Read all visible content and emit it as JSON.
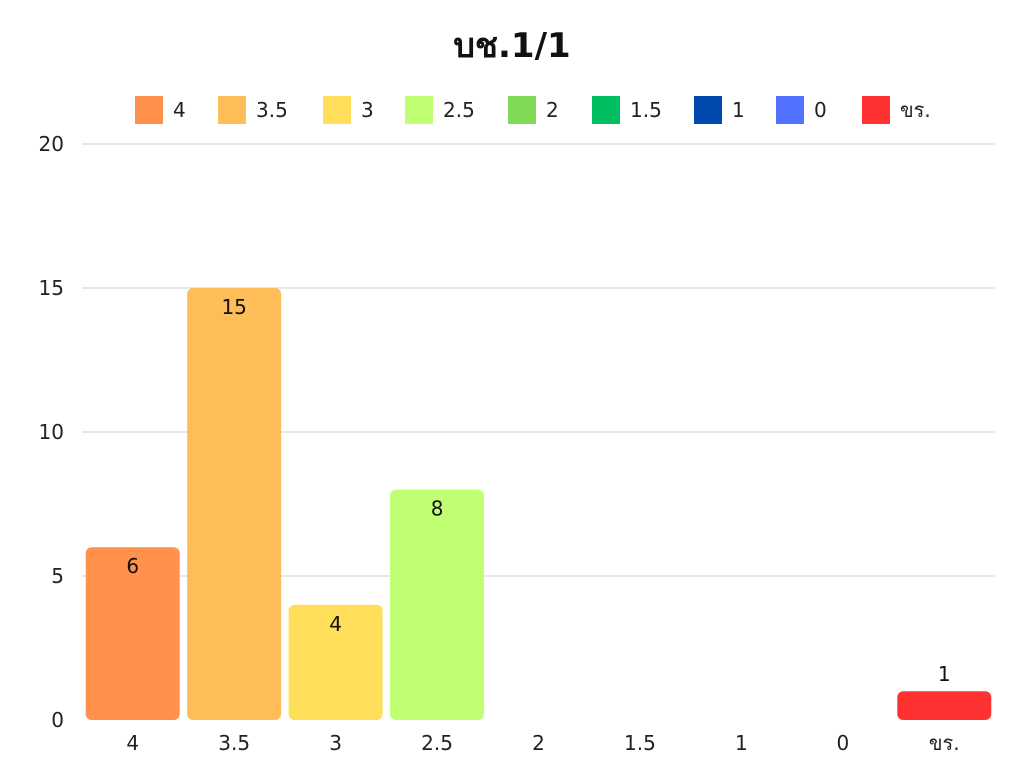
{
  "chart_data": {
    "type": "bar",
    "title": "บช.1/1",
    "categories": [
      "4",
      "3.5",
      "3",
      "2.5",
      "2",
      "1.5",
      "1",
      "0",
      "ขร."
    ],
    "values": [
      6,
      15,
      4,
      8,
      0,
      0,
      0,
      0,
      1
    ],
    "data_labels": [
      "6",
      "15",
      "4",
      "8",
      "",
      "",
      "",
      "",
      "1"
    ],
    "colors": [
      "#ff914d",
      "#ffbd59",
      "#ffde59",
      "#c1ff72",
      "#7ed957",
      "#00bf63",
      "#004aad",
      "#5271ff",
      "#ff3131"
    ],
    "legend": {
      "position": "top",
      "entries": [
        "4",
        "3.5",
        "3",
        "2.5",
        "2",
        "1.5",
        "1",
        "0",
        "ขร."
      ]
    },
    "ylim": [
      0,
      20
    ],
    "yticks": [
      "0",
      "5",
      "10",
      "15",
      "20"
    ],
    "ytick_values": [
      0,
      5,
      10,
      15,
      20
    ],
    "grid": true,
    "xlabel": "",
    "ylabel": ""
  }
}
